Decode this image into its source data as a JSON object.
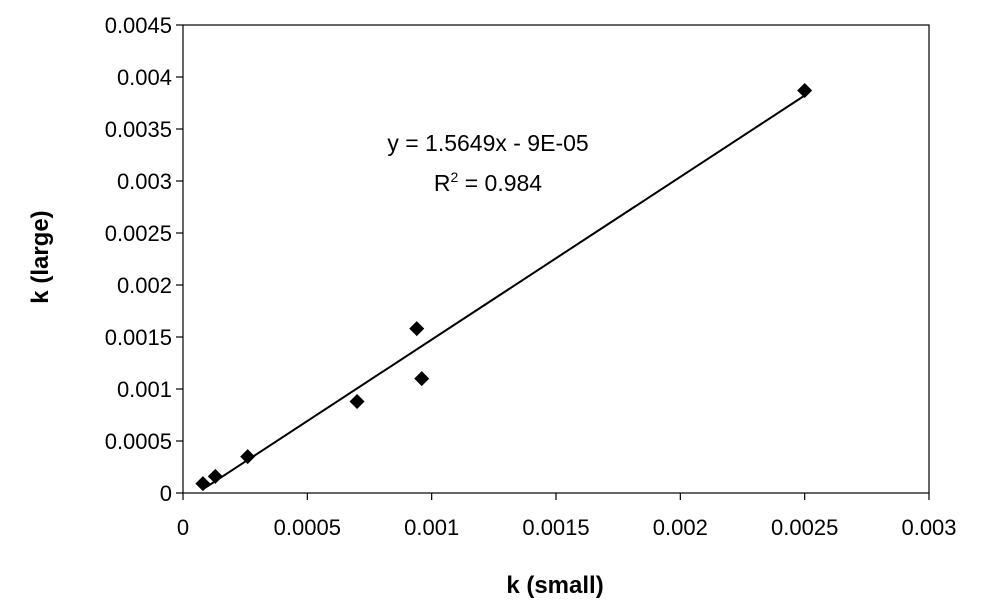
{
  "chart_data": {
    "type": "scatter",
    "title": "",
    "xlabel": "k (small)",
    "ylabel": "k (large)",
    "xlim": [
      0,
      0.003
    ],
    "ylim": [
      0,
      0.0045
    ],
    "grid": false,
    "x_ticks": [
      "0",
      "0.0005",
      "0.001",
      "0.0015",
      "0.002",
      "0.0025",
      "0.003"
    ],
    "y_ticks": [
      "0",
      "0.0005",
      "0.001",
      "0.0015",
      "0.002",
      "0.0025",
      "0.003",
      "0.0035",
      "0.004",
      "0.0045"
    ],
    "series": [
      {
        "marker": "diamond",
        "color": "#000000",
        "points": [
          {
            "x": 8e-05,
            "y": 9e-05
          },
          {
            "x": 0.00013,
            "y": 0.00016
          },
          {
            "x": 0.00026,
            "y": 0.00035
          },
          {
            "x": 0.0007,
            "y": 0.00088
          },
          {
            "x": 0.00094,
            "y": 0.00158
          },
          {
            "x": 0.00096,
            "y": 0.0011
          },
          {
            "x": 0.0025,
            "y": 0.00387
          }
        ]
      }
    ],
    "trendline": {
      "type": "linear",
      "slope": 1.5649,
      "intercept": -9e-05,
      "x_range": [
        8e-05,
        0.0025
      ],
      "equation_label": "y = 1.5649x - 9E-05",
      "r2_prefix": "R",
      "r2_sup": "2",
      "r2_value": " = 0.984"
    }
  }
}
